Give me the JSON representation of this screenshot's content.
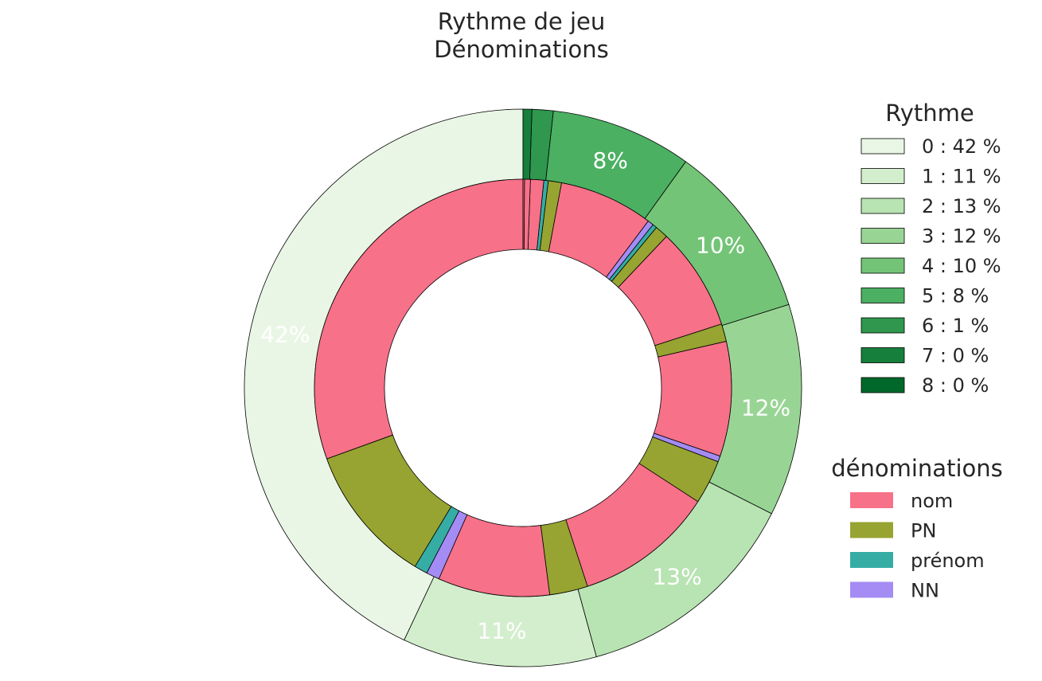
{
  "chart_data": {
    "type": "pie",
    "variant": "nested-donut",
    "title_lines": [
      "Rythme de jeu",
      "Dénominations"
    ],
    "outer": {
      "legend_title": "Rythme",
      "labels": [
        "0 : 42 %",
        "1 : 11 %",
        "2 : 13 %",
        "3 : 12 %",
        "4 : 10 %",
        "5 : 8 %",
        "6 : 1 %",
        "7 : 0 %",
        "8 : 0 %"
      ],
      "values": [
        42.0,
        11.0,
        13.0,
        12.0,
        10.0,
        8.0,
        1.2,
        0.5,
        0.0
      ],
      "pct_labels": [
        "42%",
        "11%",
        "13%",
        "12%",
        "10%",
        "8%",
        "",
        "",
        ""
      ],
      "colors": [
        "#e9f6e5",
        "#d3eecd",
        "#b8e3b2",
        "#98d594",
        "#73c476",
        "#4bb062",
        "#2f974e",
        "#157f3b",
        "#00682a"
      ]
    },
    "inner": {
      "legend_title": "dénominations",
      "categories": [
        "nom",
        "PN",
        "prénom",
        "NN"
      ],
      "colors": {
        "nom": "#f77189",
        "PN": "#97a431",
        "prénom": "#36ada4",
        "NN": "#a48cf4"
      },
      "segments": [
        {
          "cat": "nom",
          "value": 26.8
        },
        {
          "cat": "PN",
          "value": 9.5
        },
        {
          "cat": "prénom",
          "value": 0.9
        },
        {
          "cat": "NN",
          "value": 0.9
        },
        {
          "cat": "nom",
          "value": 7.6
        },
        {
          "cat": "PN",
          "value": 2.6
        },
        {
          "cat": "nom",
          "value": 9.5
        },
        {
          "cat": "PN",
          "value": 3.0
        },
        {
          "cat": "NN",
          "value": 0.4
        },
        {
          "cat": "nom",
          "value": 7.8
        },
        {
          "cat": "PN",
          "value": 1.2
        },
        {
          "cat": "nom",
          "value": 7.0
        },
        {
          "cat": "PN",
          "value": 0.9
        },
        {
          "cat": "prénom",
          "value": 0.3
        },
        {
          "cat": "NN",
          "value": 0.4
        },
        {
          "cat": "nom",
          "value": 6.4
        },
        {
          "cat": "PN",
          "value": 0.9
        },
        {
          "cat": "prénom",
          "value": 0.3
        },
        {
          "cat": "nom",
          "value": 0.9
        },
        {
          "cat": "nom",
          "value": 0.4
        },
        {
          "cat": "nom",
          "value": 0.1
        }
      ]
    },
    "legend_placement": "right",
    "start_angle_deg": 90,
    "direction": "counterclockwise",
    "edge_color": "#000000"
  }
}
